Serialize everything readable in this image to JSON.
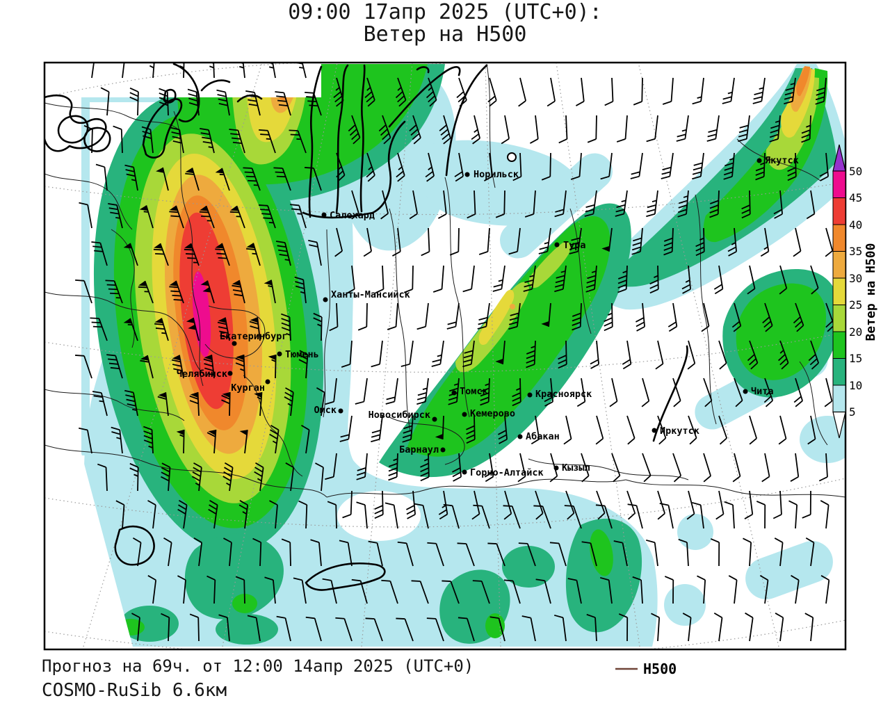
{
  "title": {
    "line1": "09:00 17апр 2025 (UTC+0):",
    "line2": "Ветер на H500"
  },
  "footer": {
    "forecast_line": "Прогноз на 69ч. от 12:00 14апр 2025 (UTC+0)",
    "model_line": "COSMO-RuSib 6.6км"
  },
  "legend": {
    "label": "H500",
    "line_color": "#6f4438"
  },
  "colorbar": {
    "unit_label": "Ветер на H500",
    "tick_labels": [
      "50",
      "45",
      "40",
      "35",
      "30",
      "25",
      "20",
      "15",
      "10",
      "5"
    ],
    "colors": {
      "gt50": "#9632cd",
      "45_50": "#ee0c8e",
      "40_45": "#ee3d34",
      "35_40": "#f0882c",
      "30_35": "#eeaa3e",
      "25_30": "#e5d93a",
      "20_25": "#a8d839",
      "15_20": "#1ec41e",
      "10_15": "#28b37d",
      "5_10": "#b5e7ee"
    }
  },
  "map": {
    "cities": [
      {
        "name": "Норильск"
      },
      {
        "name": "Салехард"
      },
      {
        "name": "Тура"
      },
      {
        "name": "Ханты-Мансийск"
      },
      {
        "name": "Екатеринбург"
      },
      {
        "name": "Тюмень"
      },
      {
        "name": "Челябинск"
      },
      {
        "name": "Курган"
      },
      {
        "name": "Омск"
      },
      {
        "name": "Новосибирск"
      },
      {
        "name": "Томск"
      },
      {
        "name": "Кемерово"
      },
      {
        "name": "Красноярск"
      },
      {
        "name": "Абакан"
      },
      {
        "name": "Барнаул"
      },
      {
        "name": "Горно-Алтайск"
      },
      {
        "name": "Кызыл"
      },
      {
        "name": "Иркутск"
      },
      {
        "name": "Якутск"
      },
      {
        "name": "Чита"
      }
    ]
  }
}
